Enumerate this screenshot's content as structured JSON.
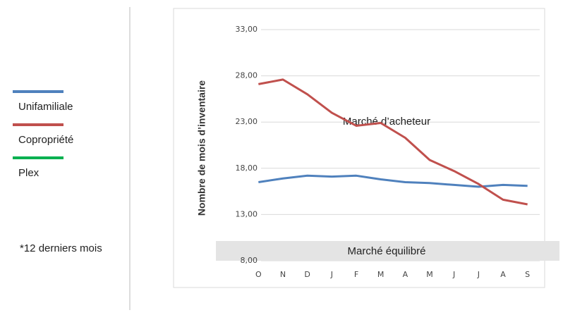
{
  "chart_data": {
    "type": "line",
    "y_axis_label": "Nombre de mois d’inventaire",
    "categories": [
      "O",
      "N",
      "D",
      "J",
      "F",
      "M",
      "A",
      "M",
      "J",
      "J",
      "A",
      "S"
    ],
    "series": [
      {
        "name": "Unifamiliale",
        "color": "#4f81bd",
        "values": [
          16.5,
          16.9,
          17.2,
          17.1,
          17.2,
          16.8,
          16.5,
          16.4,
          16.2,
          16.0,
          16.2,
          16.1
        ]
      },
      {
        "name": "Copropriété",
        "color": "#c0504d",
        "values": [
          27.1,
          27.6,
          26.0,
          24.0,
          22.6,
          22.9,
          21.3,
          18.9,
          17.7,
          16.3,
          14.6,
          14.1
        ]
      },
      {
        "name": "Plex",
        "color": "#00b050",
        "values": [
          null,
          null,
          null,
          null,
          null,
          null,
          null,
          null,
          null,
          null,
          null,
          null
        ]
      }
    ],
    "ylim": [
      8,
      33
    ],
    "yticks": [
      {
        "value": 8,
        "label": "8,00"
      },
      {
        "value": 13,
        "label": "13,00"
      },
      {
        "value": 18,
        "label": "18,00"
      },
      {
        "value": 23,
        "label": "23,00"
      },
      {
        "value": 28,
        "label": "28,00"
      },
      {
        "value": 33,
        "label": "33,00"
      }
    ],
    "grid": true,
    "annotations": [
      "Marché d’acheteur",
      "Marché équilibré"
    ],
    "note": "*12 derniers mois"
  }
}
